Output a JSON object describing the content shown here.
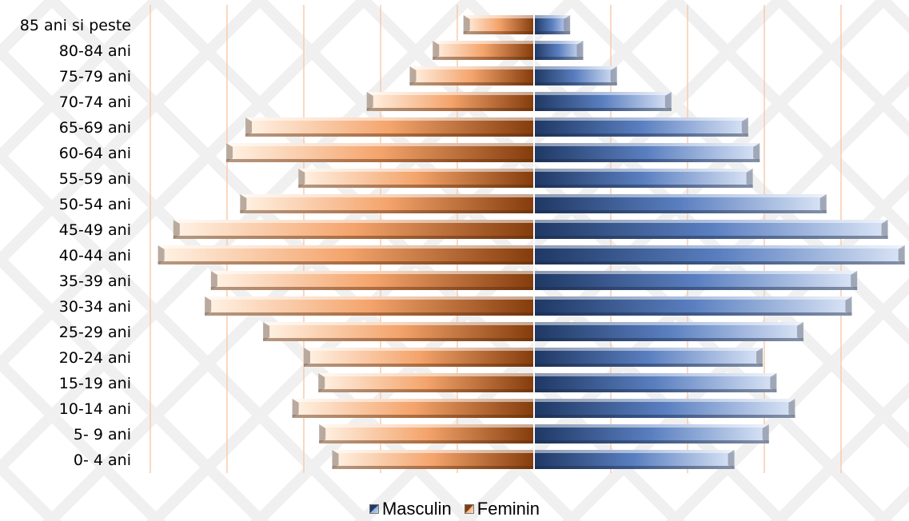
{
  "chart_data": {
    "type": "bar",
    "orientation": "horizontal",
    "layout": "population-pyramid",
    "categories": [
      "85 ani si peste",
      "80-84 ani",
      "75-79 ani",
      "70-74 ani",
      "65-69 ani",
      "60-64 ani",
      "55-59 ani",
      "50-54 ani",
      "45-49 ani",
      "40-44 ani",
      "35-39 ani",
      "30-34 ani",
      "25-29 ani",
      "20-24 ani",
      "15-19 ani",
      "10-14 ani",
      "5- 9 ani",
      "0- 4 ani"
    ],
    "series": [
      {
        "name": "Masculin",
        "color": "#4f6fa8",
        "side": "right",
        "values": [
          0.47,
          0.64,
          1.08,
          1.79,
          2.79,
          2.94,
          2.85,
          3.81,
          4.61,
          4.83,
          4.21,
          4.14,
          3.51,
          2.98,
          3.16,
          3.4,
          3.06,
          2.61
        ]
      },
      {
        "name": "Feminin",
        "color": "#d8874f",
        "side": "left",
        "values": [
          0.92,
          1.32,
          1.62,
          2.18,
          3.76,
          4.01,
          3.07,
          3.83,
          4.7,
          4.9,
          4.21,
          4.29,
          3.53,
          3.0,
          2.81,
          3.15,
          2.8,
          2.63
        ]
      }
    ],
    "xlim": [
      -5.0,
      5.0
    ],
    "grid_x": true,
    "legend_position": "bottom"
  },
  "legend": {
    "masculin_label": "Masculin",
    "feminin_label": "Feminin"
  }
}
